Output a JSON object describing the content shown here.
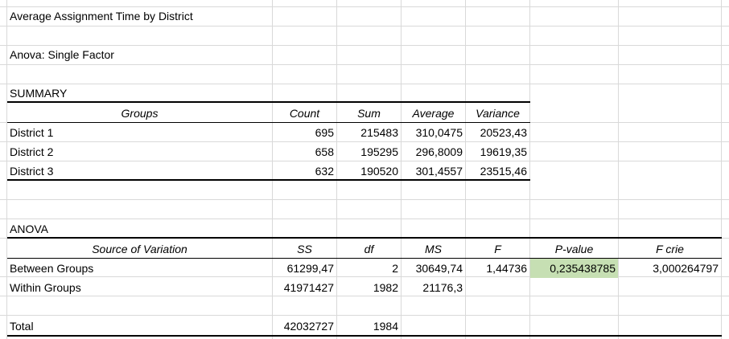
{
  "title": "Average Assignment Time by District",
  "anova_title": "Anova: Single Factor",
  "summary": {
    "label": "SUMMARY",
    "headers": [
      "Groups",
      "Count",
      "Sum",
      "Average",
      "Variance"
    ],
    "rows": [
      [
        "District 1",
        "695",
        "215483",
        "310,0475",
        "20523,43"
      ],
      [
        "District 2",
        "658",
        "195295",
        "296,8009",
        "19619,35"
      ],
      [
        "District 3",
        "632",
        "190520",
        "301,4557",
        "23515,46"
      ]
    ]
  },
  "anova": {
    "label": "ANOVA",
    "headers": [
      "Source of Variation",
      "SS",
      "df",
      "MS",
      "F",
      "P-value",
      "F crie"
    ],
    "rows": [
      [
        "Between Groups",
        "61299,47",
        "2",
        "30649,74",
        "1,44736",
        "0,235438785",
        "3,000264797"
      ],
      [
        "Within Groups",
        "41971427",
        "1982",
        "21176,3",
        "",
        "",
        ""
      ]
    ],
    "total": [
      "Total",
      "42032727",
      "1984"
    ]
  },
  "colors": {
    "highlight": "#c6dfb3",
    "gridline": "#d9d9d9"
  }
}
